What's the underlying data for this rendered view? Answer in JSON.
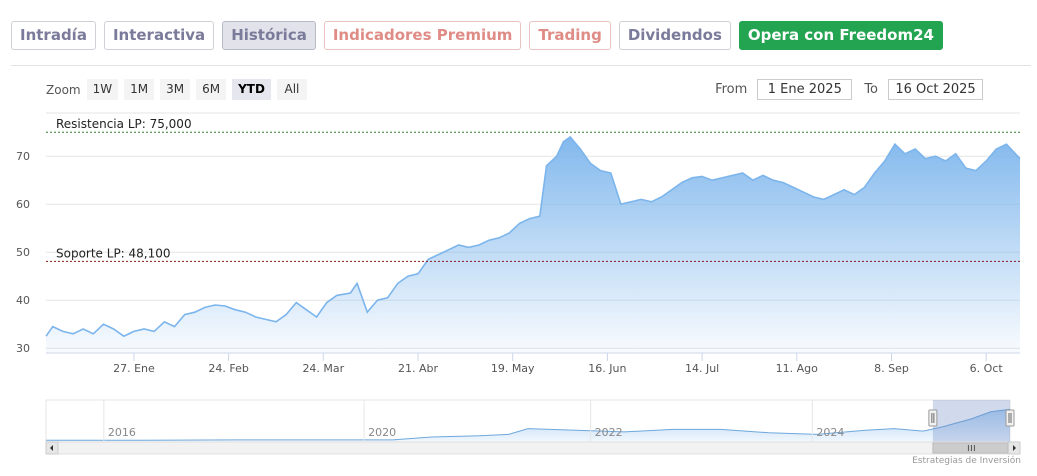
{
  "tabs": [
    {
      "label": "Intradía",
      "style": "muted"
    },
    {
      "label": "Interactiva",
      "style": "muted"
    },
    {
      "label": "Histórica",
      "style": "active"
    },
    {
      "label": "Indicadores Premium",
      "style": "coral"
    },
    {
      "label": "Trading",
      "style": "coral"
    },
    {
      "label": "Dividendos",
      "style": "muted"
    },
    {
      "label": "Opera con Freedom24",
      "style": "cta"
    }
  ],
  "zoom": {
    "label": "Zoom",
    "options": [
      "1W",
      "1M",
      "3M",
      "6M",
      "YTD",
      "All"
    ],
    "selected": "YTD"
  },
  "range": {
    "from_label": "From",
    "from_value": "1 Ene 2025",
    "to_label": "To",
    "to_value": "16 Oct 2025"
  },
  "credit": "Estrategias de Inversión",
  "colors": {
    "line": "#7cb5ec",
    "fill_top": "#7cb5ec",
    "resist_line": "#2e7d32",
    "support_line": "#8b1a1a",
    "cta": "#23a450"
  },
  "chart_data": {
    "type": "area",
    "title": "",
    "xlabel": "",
    "ylabel": "",
    "ylim": [
      29,
      79
    ],
    "xlim": [
      "2025-01-01",
      "2025-10-16"
    ],
    "yticks": [
      30,
      40,
      50,
      60,
      70
    ],
    "xticks": [
      {
        "date": "2025-01-27",
        "label": "27. Ene"
      },
      {
        "date": "2025-02-24",
        "label": "24. Feb"
      },
      {
        "date": "2025-03-24",
        "label": "24. Mar"
      },
      {
        "date": "2025-04-21",
        "label": "21. Abr"
      },
      {
        "date": "2025-05-19",
        "label": "19. May"
      },
      {
        "date": "2025-06-16",
        "label": "16. Jun"
      },
      {
        "date": "2025-07-14",
        "label": "14. Jul"
      },
      {
        "date": "2025-08-11",
        "label": "11. Ago"
      },
      {
        "date": "2025-09-08",
        "label": "8. Sep"
      },
      {
        "date": "2025-10-06",
        "label": "6. Oct"
      }
    ],
    "grid": true,
    "legend": "none",
    "annotations": [
      {
        "label": "Resistencia LP: 75,000",
        "value": 75.0
      },
      {
        "label": "Soporte LP: 48,100",
        "value": 48.1
      }
    ],
    "series": [
      {
        "points": [
          [
            "2025-01-01",
            32.5
          ],
          [
            "2025-01-03",
            34.5
          ],
          [
            "2025-01-06",
            33.5
          ],
          [
            "2025-01-09",
            33.0
          ],
          [
            "2025-01-12",
            34.0
          ],
          [
            "2025-01-15",
            33.0
          ],
          [
            "2025-01-18",
            35.0
          ],
          [
            "2025-01-21",
            34.0
          ],
          [
            "2025-01-24",
            32.5
          ],
          [
            "2025-01-27",
            33.5
          ],
          [
            "2025-01-30",
            34.0
          ],
          [
            "2025-02-02",
            33.5
          ],
          [
            "2025-02-05",
            35.5
          ],
          [
            "2025-02-08",
            34.5
          ],
          [
            "2025-02-11",
            37.0
          ],
          [
            "2025-02-14",
            37.5
          ],
          [
            "2025-02-17",
            38.5
          ],
          [
            "2025-02-20",
            39.0
          ],
          [
            "2025-02-23",
            38.8
          ],
          [
            "2025-02-26",
            38.0
          ],
          [
            "2025-03-01",
            37.5
          ],
          [
            "2025-03-04",
            36.5
          ],
          [
            "2025-03-07",
            36.0
          ],
          [
            "2025-03-10",
            35.5
          ],
          [
            "2025-03-13",
            37.0
          ],
          [
            "2025-03-16",
            39.5
          ],
          [
            "2025-03-19",
            38.0
          ],
          [
            "2025-03-22",
            36.5
          ],
          [
            "2025-03-25",
            39.5
          ],
          [
            "2025-03-28",
            41.0
          ],
          [
            "2025-04-01",
            41.5
          ],
          [
            "2025-04-03",
            43.5
          ],
          [
            "2025-04-06",
            37.5
          ],
          [
            "2025-04-09",
            40.0
          ],
          [
            "2025-04-12",
            40.5
          ],
          [
            "2025-04-15",
            43.5
          ],
          [
            "2025-04-18",
            45.0
          ],
          [
            "2025-04-21",
            45.5
          ],
          [
            "2025-04-24",
            48.5
          ],
          [
            "2025-04-27",
            49.5
          ],
          [
            "2025-04-30",
            50.5
          ],
          [
            "2025-05-03",
            51.5
          ],
          [
            "2025-05-06",
            51.0
          ],
          [
            "2025-05-09",
            51.5
          ],
          [
            "2025-05-12",
            52.5
          ],
          [
            "2025-05-15",
            53.0
          ],
          [
            "2025-05-18",
            54.0
          ],
          [
            "2025-05-21",
            56.0
          ],
          [
            "2025-05-24",
            57.0
          ],
          [
            "2025-05-27",
            57.5
          ],
          [
            "2025-05-29",
            68.0
          ],
          [
            "2025-06-01",
            70.0
          ],
          [
            "2025-06-03",
            73.0
          ],
          [
            "2025-06-05",
            74.0
          ],
          [
            "2025-06-08",
            71.5
          ],
          [
            "2025-06-11",
            68.5
          ],
          [
            "2025-06-14",
            67.0
          ],
          [
            "2025-06-17",
            66.5
          ],
          [
            "2025-06-20",
            60.0
          ],
          [
            "2025-06-23",
            60.5
          ],
          [
            "2025-06-26",
            61.0
          ],
          [
            "2025-06-29",
            60.5
          ],
          [
            "2025-07-02",
            61.5
          ],
          [
            "2025-07-05",
            63.0
          ],
          [
            "2025-07-08",
            64.5
          ],
          [
            "2025-07-11",
            65.5
          ],
          [
            "2025-07-14",
            65.8
          ],
          [
            "2025-07-17",
            65.0
          ],
          [
            "2025-07-20",
            65.5
          ],
          [
            "2025-07-23",
            66.0
          ],
          [
            "2025-07-26",
            66.5
          ],
          [
            "2025-07-29",
            65.0
          ],
          [
            "2025-08-01",
            66.0
          ],
          [
            "2025-08-04",
            65.0
          ],
          [
            "2025-08-07",
            64.5
          ],
          [
            "2025-08-10",
            63.5
          ],
          [
            "2025-08-13",
            62.5
          ],
          [
            "2025-08-16",
            61.5
          ],
          [
            "2025-08-19",
            61.0
          ],
          [
            "2025-08-22",
            62.0
          ],
          [
            "2025-08-25",
            63.0
          ],
          [
            "2025-08-28",
            62.0
          ],
          [
            "2025-08-31",
            63.5
          ],
          [
            "2025-09-03",
            66.5
          ],
          [
            "2025-09-06",
            69.0
          ],
          [
            "2025-09-09",
            72.5
          ],
          [
            "2025-09-12",
            70.5
          ],
          [
            "2025-09-15",
            71.5
          ],
          [
            "2025-09-18",
            69.5
          ],
          [
            "2025-09-21",
            70.0
          ],
          [
            "2025-09-24",
            69.0
          ],
          [
            "2025-09-27",
            70.5
          ],
          [
            "2025-09-30",
            67.5
          ],
          [
            "2025-10-03",
            67.0
          ],
          [
            "2025-10-06",
            69.0
          ],
          [
            "2025-10-09",
            71.5
          ],
          [
            "2025-10-12",
            72.5
          ],
          [
            "2025-10-14",
            71.0
          ],
          [
            "2025-10-16",
            69.5
          ]
        ]
      }
    ]
  },
  "navigator": {
    "labels": [
      "2016",
      "2020",
      "2022",
      "2024"
    ],
    "series": [
      [
        0.0,
        0.04
      ],
      [
        0.1,
        0.04
      ],
      [
        0.2,
        0.05
      ],
      [
        0.3,
        0.05
      ],
      [
        0.36,
        0.05
      ],
      [
        0.4,
        0.12
      ],
      [
        0.45,
        0.15
      ],
      [
        0.48,
        0.18
      ],
      [
        0.5,
        0.32
      ],
      [
        0.55,
        0.28
      ],
      [
        0.6,
        0.24
      ],
      [
        0.65,
        0.3
      ],
      [
        0.7,
        0.3
      ],
      [
        0.75,
        0.22
      ],
      [
        0.8,
        0.18
      ],
      [
        0.85,
        0.28
      ],
      [
        0.88,
        0.32
      ],
      [
        0.91,
        0.26
      ],
      [
        0.93,
        0.36
      ],
      [
        0.96,
        0.55
      ],
      [
        0.98,
        0.72
      ],
      [
        1.0,
        0.78
      ]
    ],
    "selection": [
      0.92,
      1.0
    ]
  }
}
